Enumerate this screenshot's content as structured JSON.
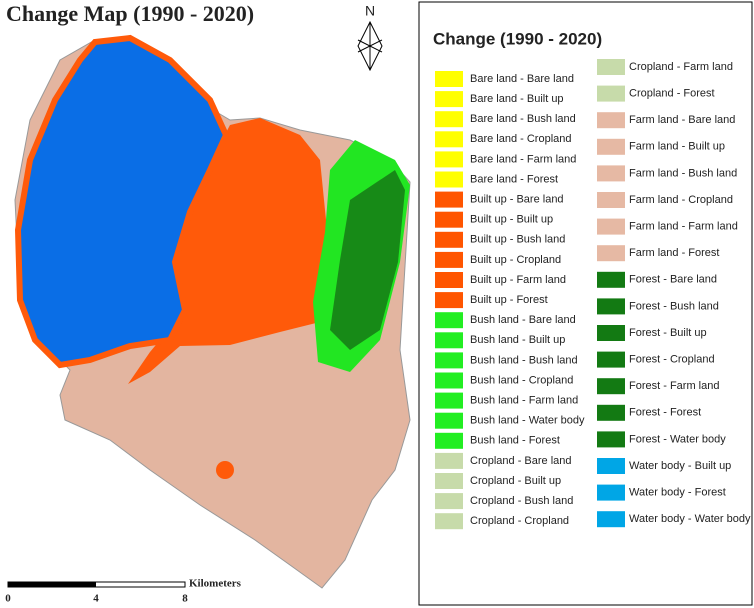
{
  "title": "Change Map (1990 - 2020)",
  "north_arrow": "N",
  "scale_bar": {
    "labels": [
      "0",
      "4",
      "8"
    ],
    "unit": "Kilometers"
  },
  "legend": {
    "title": "Change (1990 - 2020)",
    "columns": [
      [
        {
          "label": "Bare land  - Bare land",
          "color": "#ffff00"
        },
        {
          "label": "Bare land  - Built up",
          "color": "#ffff00"
        },
        {
          "label": "Bare land  - Bush land",
          "color": "#ffff00"
        },
        {
          "label": "Bare land  - Cropland",
          "color": "#ffff00"
        },
        {
          "label": "Bare land  - Farm land",
          "color": "#ffff00"
        },
        {
          "label": "Bare land  - Forest",
          "color": "#ffff00"
        },
        {
          "label": "Built up  - Bare land",
          "color": "#ff5500"
        },
        {
          "label": "Built up  - Built up",
          "color": "#ff5500"
        },
        {
          "label": "Built up  - Bush land",
          "color": "#ff5500"
        },
        {
          "label": "Built up  - Cropland",
          "color": "#ff5500"
        },
        {
          "label": "Built up  - Farm land",
          "color": "#ff5500"
        },
        {
          "label": "Built up  - Forest",
          "color": "#ff5500"
        },
        {
          "label": "Bush land  - Bare land",
          "color": "#22ee22"
        },
        {
          "label": "Bush land  - Built up",
          "color": "#22ee22"
        },
        {
          "label": "Bush land  - Bush land",
          "color": "#22ee22"
        },
        {
          "label": "Bush land  - Cropland",
          "color": "#22ee22"
        },
        {
          "label": "Bush land  - Farm land",
          "color": "#22ee22"
        },
        {
          "label": "Bush land  - Water body",
          "color": "#22ee22"
        },
        {
          "label": "Bush land  - Forest",
          "color": "#22ee22"
        },
        {
          "label": "Cropland  - Bare land",
          "color": "#c7dbaa"
        },
        {
          "label": "Cropland  - Built up",
          "color": "#c7dbaa"
        },
        {
          "label": "Cropland  - Bush land",
          "color": "#c7dbaa"
        },
        {
          "label": "Cropland  - Cropland",
          "color": "#c7dbaa"
        }
      ],
      [
        {
          "label": "Cropland  - Farm land",
          "color": "#c7dbaa"
        },
        {
          "label": "Cropland  - Forest",
          "color": "#c7dbaa"
        },
        {
          "label": "Farm land  - Bare land",
          "color": "#e6b9a4"
        },
        {
          "label": "Farm land  - Built up",
          "color": "#e6b9a4"
        },
        {
          "label": "Farm land  - Bush land",
          "color": "#e6b9a4"
        },
        {
          "label": "Farm land  - Cropland",
          "color": "#e6b9a4"
        },
        {
          "label": "Farm land  - Farm land",
          "color": "#e6b9a4"
        },
        {
          "label": "Farm land  - Forest",
          "color": "#e6b9a4"
        },
        {
          "label": "Forest  - Bare land",
          "color": "#137a13"
        },
        {
          "label": "Forest  - Bush land",
          "color": "#137a13"
        },
        {
          "label": "Forest  - Built up",
          "color": "#137a13"
        },
        {
          "label": "Forest  - Cropland",
          "color": "#137a13"
        },
        {
          "label": "Forest  - Farm land",
          "color": "#137a13"
        },
        {
          "label": "Forest  - Forest",
          "color": "#137a13"
        },
        {
          "label": "Forest  - Water body",
          "color": "#137a13"
        },
        {
          "label": "Water body  - Built up",
          "color": "#00a6e6"
        },
        {
          "label": "Water body  - Forest",
          "color": "#00a6e6"
        },
        {
          "label": "Water body  - Water body",
          "color": "#00a6e6"
        }
      ]
    ]
  }
}
